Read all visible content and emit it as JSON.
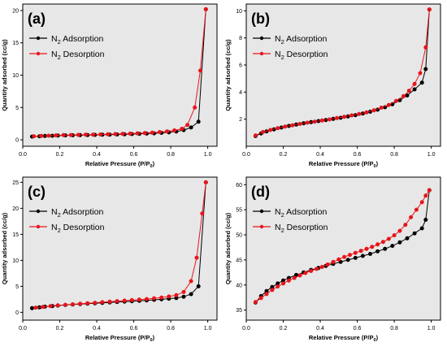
{
  "chart_data": [
    {
      "type": "line",
      "panel_label": "(a)",
      "xlabel": "Relative Pressure (P/P",
      "xlabel_sub": "0",
      "xlabel_tail": ")",
      "ylabel": "Quantity adsorbed (cc/g)",
      "xlim": [
        0.0,
        1.05
      ],
      "ylim": [
        -1,
        21
      ],
      "xticks": [
        "0.0",
        "0.2",
        "0.4",
        "0.6",
        "0.8",
        "1.0"
      ],
      "yticks": [
        "0",
        "5",
        "10",
        "15",
        "20"
      ],
      "legend_position": "top-left",
      "grid": false,
      "series": [
        {
          "name_prefix": "N",
          "name_sub": "2",
          "name_suffix": " Adsorption",
          "color": "#000000",
          "x": [
            0.05,
            0.09,
            0.12,
            0.16,
            0.19,
            0.23,
            0.27,
            0.31,
            0.35,
            0.39,
            0.43,
            0.47,
            0.51,
            0.55,
            0.59,
            0.63,
            0.67,
            0.71,
            0.75,
            0.79,
            0.83,
            0.87,
            0.91,
            0.95,
            0.99
          ],
          "y": [
            0.5,
            0.55,
            0.6,
            0.62,
            0.65,
            0.68,
            0.7,
            0.72,
            0.74,
            0.76,
            0.78,
            0.8,
            0.82,
            0.85,
            0.88,
            0.92,
            0.96,
            1.0,
            1.08,
            1.15,
            1.28,
            1.5,
            1.9,
            2.8,
            20.2
          ]
        },
        {
          "name_prefix": "N",
          "name_sub": "2",
          "name_suffix": " Desorption",
          "color": "#e8141b",
          "x": [
            0.99,
            0.96,
            0.93,
            0.89,
            0.86,
            0.82,
            0.78,
            0.74,
            0.7,
            0.66,
            0.62,
            0.58,
            0.54,
            0.5,
            0.46,
            0.42,
            0.38,
            0.34,
            0.3,
            0.26,
            0.22,
            0.18,
            0.14,
            0.1,
            0.06
          ],
          "y": [
            20.2,
            10.7,
            5.0,
            2.3,
            1.7,
            1.45,
            1.3,
            1.2,
            1.1,
            1.05,
            1.0,
            0.95,
            0.92,
            0.88,
            0.85,
            0.82,
            0.8,
            0.78,
            0.76,
            0.74,
            0.72,
            0.68,
            0.64,
            0.6,
            0.55
          ]
        }
      ]
    },
    {
      "type": "line",
      "panel_label": "(b)",
      "xlabel": "Relative Pressure (P/P",
      "xlabel_sub": "0",
      "xlabel_tail": ")",
      "ylabel": "Quantity adsorbed (cc/g)",
      "xlim": [
        0.0,
        1.05
      ],
      "ylim": [
        0,
        10.5
      ],
      "xticks": [
        "0.0",
        "0.2",
        "0.4",
        "0.6",
        "0.8",
        "1.0"
      ],
      "yticks": [
        "2",
        "4",
        "6",
        "8",
        "10"
      ],
      "legend_position": "top-left",
      "grid": false,
      "series": [
        {
          "name_prefix": "N",
          "name_sub": "2",
          "name_suffix": " Adsorption",
          "color": "#000000",
          "x": [
            0.05,
            0.08,
            0.11,
            0.15,
            0.19,
            0.23,
            0.27,
            0.31,
            0.35,
            0.39,
            0.43,
            0.47,
            0.51,
            0.55,
            0.59,
            0.63,
            0.67,
            0.71,
            0.75,
            0.79,
            0.83,
            0.87,
            0.91,
            0.95,
            0.97,
            0.99
          ],
          "y": [
            0.75,
            0.95,
            1.1,
            1.25,
            1.38,
            1.5,
            1.6,
            1.7,
            1.78,
            1.86,
            1.94,
            2.02,
            2.1,
            2.2,
            2.3,
            2.42,
            2.55,
            2.7,
            2.88,
            3.1,
            3.4,
            3.75,
            4.2,
            4.7,
            5.7,
            10.1
          ]
        },
        {
          "name_prefix": "N",
          "name_sub": "2",
          "name_suffix": " Desorption",
          "color": "#e8141b",
          "x": [
            0.99,
            0.97,
            0.94,
            0.91,
            0.88,
            0.85,
            0.81,
            0.77,
            0.73,
            0.69,
            0.65,
            0.61,
            0.57,
            0.53,
            0.49,
            0.45,
            0.41,
            0.37,
            0.33,
            0.29,
            0.25,
            0.21,
            0.17,
            0.13,
            0.09,
            0.05
          ],
          "y": [
            10.1,
            7.3,
            5.4,
            4.6,
            4.1,
            3.7,
            3.35,
            3.05,
            2.85,
            2.65,
            2.5,
            2.38,
            2.28,
            2.18,
            2.08,
            1.98,
            1.9,
            1.82,
            1.74,
            1.65,
            1.55,
            1.45,
            1.33,
            1.2,
            1.05,
            0.8
          ]
        }
      ]
    },
    {
      "type": "line",
      "panel_label": "(c)",
      "xlabel": "Relative Pressure (P/P",
      "xlabel_sub": "0",
      "xlabel_tail": ")",
      "ylabel": "Quantity adsorbed (cc/g)",
      "xlim": [
        0.0,
        1.05
      ],
      "ylim": [
        -1.5,
        26
      ],
      "xticks": [
        "0.0",
        "0.2",
        "0.4",
        "0.6",
        "0.8",
        "1.0"
      ],
      "yticks": [
        "0",
        "5",
        "10",
        "15",
        "20",
        "25"
      ],
      "legend_position": "top-left",
      "grid": false,
      "series": [
        {
          "name_prefix": "N",
          "name_sub": "2",
          "name_suffix": " Adsorption",
          "color": "#000000",
          "x": [
            0.05,
            0.09,
            0.12,
            0.16,
            0.19,
            0.23,
            0.27,
            0.31,
            0.35,
            0.39,
            0.43,
            0.47,
            0.51,
            0.55,
            0.59,
            0.63,
            0.67,
            0.71,
            0.75,
            0.79,
            0.83,
            0.87,
            0.91,
            0.95,
            0.99
          ],
          "y": [
            0.8,
            0.95,
            1.1,
            1.2,
            1.3,
            1.4,
            1.5,
            1.58,
            1.66,
            1.74,
            1.82,
            1.9,
            1.98,
            2.06,
            2.14,
            2.22,
            2.3,
            2.4,
            2.5,
            2.62,
            2.75,
            3.0,
            3.5,
            5.0,
            25.0
          ]
        },
        {
          "name_prefix": "N",
          "name_sub": "2",
          "name_suffix": " Desorption",
          "color": "#e8141b",
          "x": [
            0.99,
            0.97,
            0.94,
            0.91,
            0.87,
            0.83,
            0.79,
            0.75,
            0.71,
            0.67,
            0.63,
            0.59,
            0.55,
            0.51,
            0.47,
            0.43,
            0.39,
            0.35,
            0.31,
            0.27,
            0.23,
            0.19,
            0.15,
            0.11,
            0.07
          ],
          "y": [
            25.0,
            19.0,
            10.5,
            6.0,
            3.9,
            3.3,
            3.05,
            2.85,
            2.7,
            2.55,
            2.45,
            2.35,
            2.25,
            2.15,
            2.05,
            1.95,
            1.85,
            1.75,
            1.65,
            1.55,
            1.45,
            1.35,
            1.2,
            1.05,
            0.9
          ]
        }
      ]
    },
    {
      "type": "line",
      "panel_label": "(d)",
      "xlabel": "Relative Pressure (P/P",
      "xlabel_sub": "0",
      "xlabel_tail": ")",
      "ylabel": "Quantity adsorbed (cc/g)",
      "xlim": [
        0.0,
        1.05
      ],
      "ylim": [
        33,
        61.5
      ],
      "xticks": [
        "0.0",
        "0.2",
        "0.4",
        "0.6",
        "0.8",
        "1.0"
      ],
      "yticks": [
        "35",
        "40",
        "45",
        "50",
        "55",
        "60"
      ],
      "legend_position": "top-left",
      "grid": false,
      "series": [
        {
          "name_prefix": "N",
          "name_sub": "2",
          "name_suffix": " Adsorption",
          "color": "#000000",
          "x": [
            0.05,
            0.08,
            0.11,
            0.14,
            0.17,
            0.2,
            0.23,
            0.27,
            0.31,
            0.35,
            0.39,
            0.43,
            0.47,
            0.51,
            0.55,
            0.59,
            0.63,
            0.67,
            0.71,
            0.75,
            0.79,
            0.83,
            0.87,
            0.91,
            0.95,
            0.97,
            0.99
          ],
          "y": [
            36.5,
            37.8,
            38.8,
            39.6,
            40.3,
            40.9,
            41.4,
            42.0,
            42.5,
            43.0,
            43.4,
            43.8,
            44.2,
            44.6,
            45.0,
            45.4,
            45.8,
            46.2,
            46.7,
            47.2,
            47.8,
            48.5,
            49.3,
            50.3,
            51.3,
            53.0,
            58.9
          ]
        },
        {
          "name_prefix": "N",
          "name_sub": "2",
          "name_suffix": " Desorption",
          "color": "#e8141b",
          "x": [
            0.99,
            0.97,
            0.95,
            0.92,
            0.89,
            0.86,
            0.83,
            0.8,
            0.77,
            0.74,
            0.71,
            0.68,
            0.65,
            0.62,
            0.59,
            0.56,
            0.53,
            0.5,
            0.47,
            0.44,
            0.41,
            0.38,
            0.35,
            0.32,
            0.29,
            0.26,
            0.23,
            0.2,
            0.17,
            0.14,
            0.11,
            0.08,
            0.05
          ],
          "y": [
            58.9,
            57.8,
            56.5,
            55.0,
            53.5,
            52.0,
            50.8,
            49.9,
            49.2,
            48.6,
            48.1,
            47.6,
            47.2,
            46.8,
            46.4,
            46.0,
            45.6,
            45.1,
            44.6,
            44.1,
            43.6,
            43.2,
            42.8,
            42.4,
            41.9,
            41.4,
            40.9,
            40.3,
            39.7,
            39.0,
            38.2,
            37.4,
            36.6
          ]
        }
      ]
    }
  ]
}
